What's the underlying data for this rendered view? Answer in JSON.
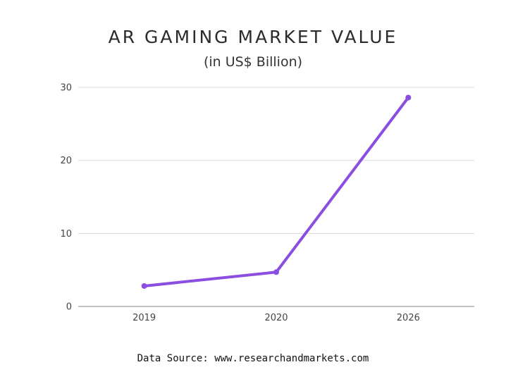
{
  "chart_data": {
    "type": "line",
    "title": "AR GAMING MARKET VALUE",
    "subtitle": "(in US$ Billion)",
    "xlabel": "",
    "ylabel": "",
    "categories": [
      "2019",
      "2020",
      "2026"
    ],
    "series": [
      {
        "values": [
          2.8,
          4.7,
          28.6
        ]
      }
    ],
    "ylim": [
      0,
      30
    ],
    "yticks": [
      0,
      10,
      20,
      30
    ],
    "grid": true,
    "legend": "none",
    "colors": {
      "line": "#8a4fe0",
      "grid": "#dcdcdc",
      "axis": "#9a9a9a",
      "tick_text": "#444444"
    }
  },
  "source": "Data Source: www.researchandmarkets.com"
}
